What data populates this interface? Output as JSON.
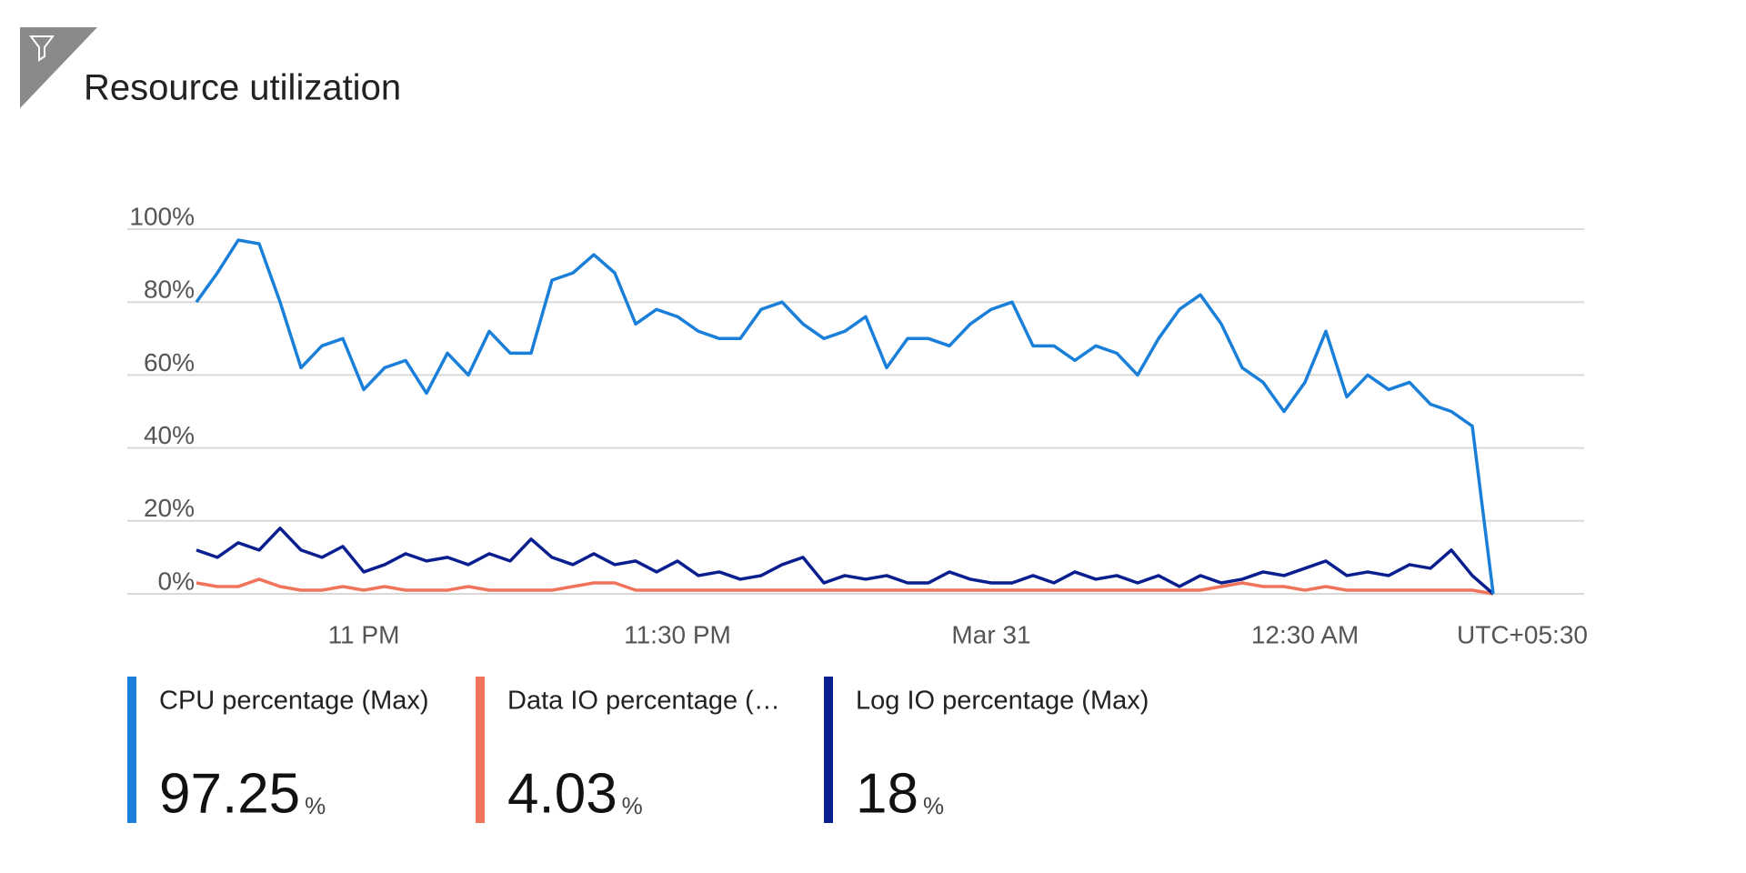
{
  "chart_data": {
    "type": "line",
    "title": "Resource utilization",
    "categories": [
      null,
      null,
      null,
      null,
      null,
      null,
      null,
      null,
      "11 PM",
      null,
      null,
      null,
      null,
      null,
      null,
      null,
      null,
      null,
      null,
      null,
      null,
      null,
      null,
      "11:30 PM",
      null,
      null,
      null,
      null,
      null,
      null,
      null,
      null,
      null,
      null,
      null,
      null,
      null,
      null,
      "Mar 31",
      null,
      null,
      null,
      null,
      null,
      null,
      null,
      null,
      null,
      null,
      null,
      null,
      null,
      null,
      "12:30 AM",
      null,
      null,
      null,
      null,
      null,
      null,
      null,
      null,
      null
    ],
    "timezone": "UTC+05:30",
    "ylim": [
      0,
      100
    ],
    "yticks": [
      {
        "value": 0,
        "label": "0%"
      },
      {
        "value": 20,
        "label": "20%"
      },
      {
        "value": 40,
        "label": "40%"
      },
      {
        "value": 60,
        "label": "60%"
      },
      {
        "value": 80,
        "label": "80%"
      },
      {
        "value": 100,
        "label": "100%"
      }
    ],
    "grid": true,
    "series": [
      {
        "name": "CPU percentage (Max)",
        "color": "#1a7fd9",
        "summary": 97.25,
        "unit": "%",
        "values": [
          80,
          88,
          97,
          96,
          80,
          62,
          68,
          70,
          56,
          62,
          64,
          55,
          66,
          60,
          72,
          66,
          66,
          86,
          88,
          93,
          88,
          74,
          78,
          76,
          72,
          70,
          70,
          78,
          80,
          74,
          70,
          72,
          76,
          62,
          70,
          70,
          68,
          74,
          78,
          80,
          68,
          68,
          64,
          68,
          66,
          60,
          70,
          78,
          82,
          74,
          62,
          58,
          50,
          58,
          72,
          54,
          60,
          56,
          58,
          52,
          50,
          46,
          0
        ]
      },
      {
        "name": "Data IO percentage (…",
        "color": "#f0735a",
        "summary": 4.03,
        "unit": "%",
        "values": [
          3,
          2,
          2,
          4,
          2,
          1,
          1,
          2,
          1,
          2,
          1,
          1,
          1,
          2,
          1,
          1,
          1,
          1,
          2,
          3,
          3,
          1,
          1,
          1,
          1,
          1,
          1,
          1,
          1,
          1,
          1,
          1,
          1,
          1,
          1,
          1,
          1,
          1,
          1,
          1,
          1,
          1,
          1,
          1,
          1,
          1,
          1,
          1,
          1,
          2,
          3,
          2,
          2,
          1,
          2,
          1,
          1,
          1,
          1,
          1,
          1,
          1,
          0
        ]
      },
      {
        "name": "Log IO percentage (Max)",
        "color": "#0a1f8f",
        "summary": 18,
        "unit": "%",
        "values": [
          12,
          10,
          14,
          12,
          18,
          12,
          10,
          13,
          6,
          8,
          11,
          9,
          10,
          8,
          11,
          9,
          15,
          10,
          8,
          11,
          8,
          9,
          6,
          9,
          5,
          6,
          4,
          5,
          8,
          10,
          3,
          5,
          4,
          5,
          3,
          3,
          6,
          4,
          3,
          3,
          5,
          3,
          6,
          4,
          5,
          3,
          5,
          2,
          5,
          3,
          4,
          6,
          5,
          7,
          9,
          5,
          6,
          5,
          8,
          7,
          12,
          5,
          0
        ]
      }
    ]
  }
}
